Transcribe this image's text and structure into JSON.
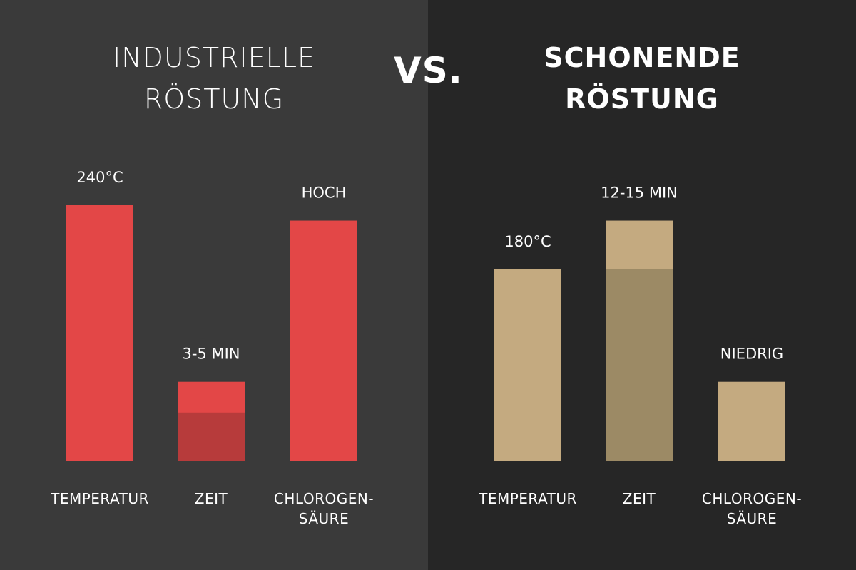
{
  "vs_label": "VS.",
  "chart_data": [
    {
      "type": "bar",
      "title_lines": [
        "INDUSTRIELLE",
        "RÖSTUNG"
      ],
      "categories": [
        {
          "lines": [
            "TEMPERATUR"
          ]
        },
        {
          "lines": [
            "ZEIT"
          ]
        },
        {
          "lines": [
            "CHLOROGEN-",
            "SÄURE"
          ]
        }
      ],
      "bars": [
        {
          "value": 1.0,
          "label": "240°C"
        },
        {
          "value": 0.31,
          "label": "3-5 MIN",
          "range_low": 0.19
        },
        {
          "value": 0.94,
          "label": "HOCH"
        }
      ],
      "ylim": [
        0,
        1
      ],
      "colors": {
        "bar": "#e34747",
        "range_dark": "#b73b3b"
      }
    },
    {
      "type": "bar",
      "title_lines": [
        "SCHONENDE",
        "RÖSTUNG"
      ],
      "categories": [
        {
          "lines": [
            "TEMPERATUR"
          ]
        },
        {
          "lines": [
            "ZEIT"
          ]
        },
        {
          "lines": [
            "CHLOROGEN-",
            "SÄURE"
          ]
        }
      ],
      "bars": [
        {
          "value": 0.75,
          "label": "180°C"
        },
        {
          "value": 0.94,
          "label": "12-15 MIN",
          "range_low": 0.75
        },
        {
          "value": 0.31,
          "label": "NIEDRIG"
        }
      ],
      "ylim": [
        0,
        1
      ],
      "colors": {
        "bar": "#c4aa80",
        "range_dark": "#9c8a65"
      }
    }
  ]
}
